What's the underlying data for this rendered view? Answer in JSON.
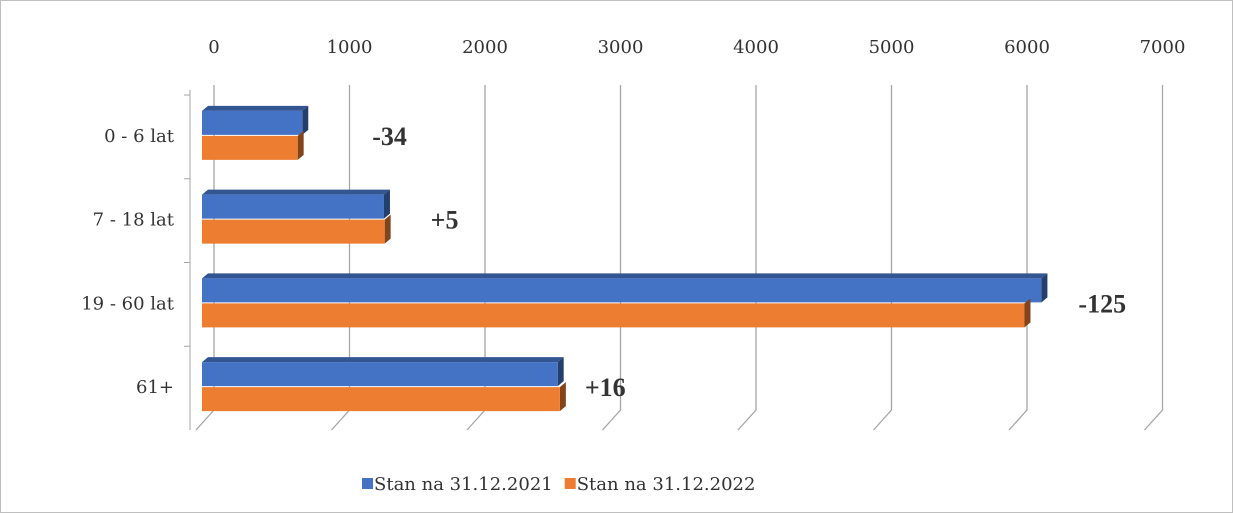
{
  "chart_data": {
    "type": "bar3d_horizontal",
    "categories": [
      "0 - 6 lat",
      "7 - 18 lat",
      "19 - 60 lat",
      "61+"
    ],
    "series": [
      {
        "name": "Stan na 31.12.2021",
        "color": "#4472c4",
        "values": [
          740,
          1343,
          6195,
          2625
        ]
      },
      {
        "name": "Stan na 31.12.2022",
        "color": "#ed7d31",
        "values": [
          706,
          1348,
          6070,
          2641
        ]
      }
    ],
    "xlim": [
      0,
      7000
    ],
    "xticks": [
      0,
      1000,
      2000,
      3000,
      4000,
      5000,
      6000,
      7000
    ],
    "grid": true,
    "legend": "bottom",
    "annotations": [
      {
        "category": "0 - 6 lat",
        "text": "-34"
      },
      {
        "category": "7 - 18 lat",
        "text": "+5"
      },
      {
        "category": "19 - 60 lat",
        "text": "-125"
      },
      {
        "category": "61+",
        "text": "+16"
      }
    ],
    "annotation_color": "#ff0000"
  }
}
